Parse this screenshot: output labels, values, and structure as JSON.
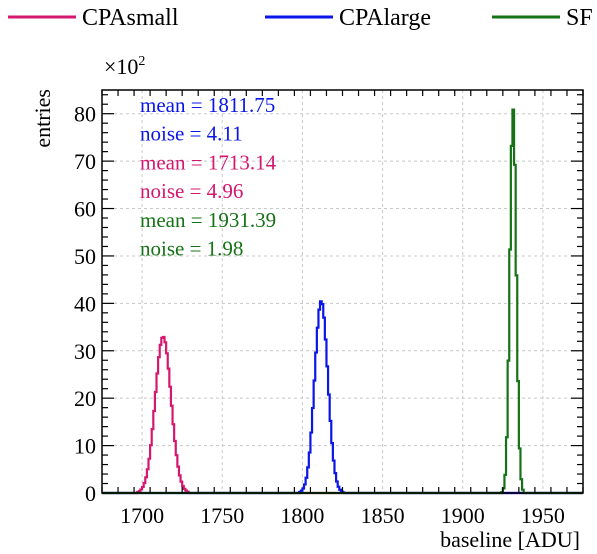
{
  "chart_data": {
    "type": "line",
    "xlabel": "baseline [ADU]",
    "ylabel": "entries",
    "y_multiplier_label": "×10",
    "y_multiplier_exponent": "2",
    "xlim": [
      1675,
      1975
    ],
    "ylim": [
      0,
      85
    ],
    "x_ticks": [
      1700,
      1750,
      1800,
      1850,
      1900,
      1950
    ],
    "y_ticks": [
      0,
      10,
      20,
      30,
      40,
      50,
      60,
      70,
      80
    ],
    "grid": true,
    "legend_position": "top",
    "series": [
      {
        "name": "CPAsmall",
        "color": "#d4176f",
        "mean": 1713.14,
        "sigma": 4.96,
        "peak": 33,
        "stats": [
          "mean = 1713.14",
          "noise = 4.96"
        ]
      },
      {
        "name": "CPAlarge",
        "color": "#0a16e8",
        "mean": 1811.75,
        "sigma": 4.11,
        "peak": 40.5,
        "stats": [
          "mean = 1811.75",
          "noise = 4.11"
        ]
      },
      {
        "name": "SF",
        "color": "#167216",
        "mean": 1931.39,
        "sigma": 1.98,
        "peak": 81,
        "stats": [
          "mean = 1931.39",
          "noise = 1.98"
        ]
      }
    ],
    "annotation_order": [
      1,
      0,
      2
    ]
  }
}
